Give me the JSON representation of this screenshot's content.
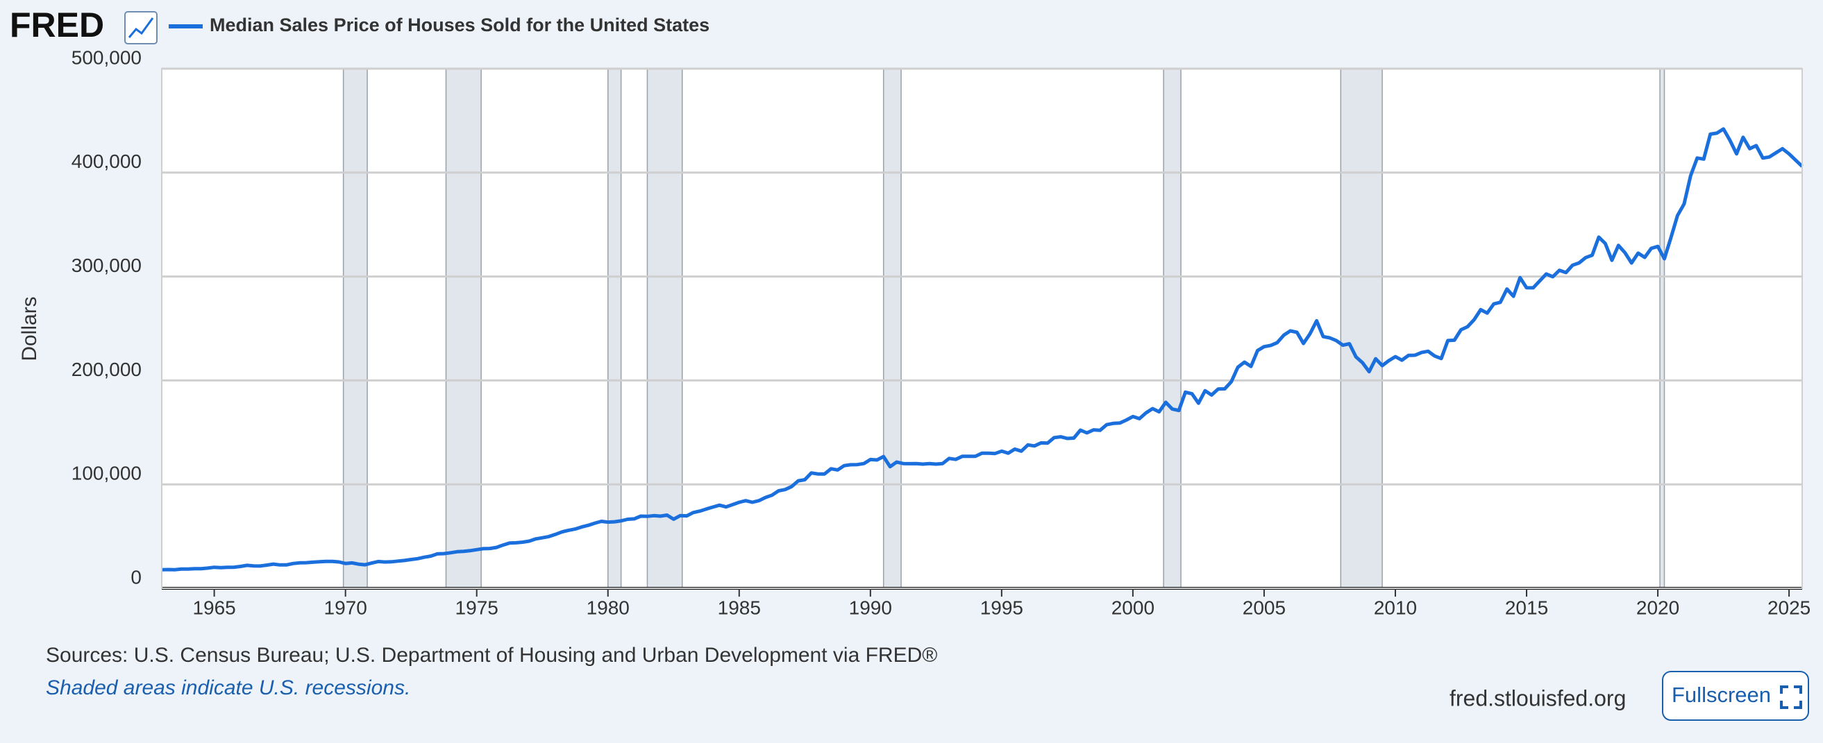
{
  "logo": "FRED",
  "footer": {
    "source": "Sources: U.S. Census Bureau; U.S. Department of Housing and Urban Development via FRED®",
    "note": "Shaded areas indicate U.S. recessions.",
    "site": "fred.stlouisfed.org",
    "button": "Fullscreen"
  },
  "chart_data": {
    "type": "line",
    "ylabel": "Dollars",
    "grid": true,
    "xlim": [
      1963,
      2025.5
    ],
    "xticks": [
      1965,
      1970,
      1975,
      1980,
      1985,
      1990,
      1995,
      2000,
      2005,
      2010,
      2015,
      2020,
      2025
    ],
    "ylim": [
      0,
      500000
    ],
    "yticks": [
      0,
      {
        "value": 100000,
        "label": "100,000"
      },
      {
        "value": 200000,
        "label": "200,000"
      },
      {
        "value": 300000,
        "label": "300,000"
      },
      {
        "value": 400000,
        "label": "400,000"
      },
      {
        "value": 500000,
        "label": "500,000"
      }
    ],
    "recessions": [
      [
        1969.92,
        1970.83
      ],
      [
        1973.83,
        1975.17
      ],
      [
        1980.0,
        1980.5
      ],
      [
        1981.5,
        1982.83
      ],
      [
        1990.5,
        1991.17
      ],
      [
        2001.17,
        2001.83
      ],
      [
        2007.92,
        2009.5
      ],
      [
        2020.08,
        2020.25
      ]
    ],
    "x": [
      1963,
      1963.25,
      1963.5,
      1963.75,
      1964,
      1964.25,
      1964.5,
      1964.75,
      1965,
      1965.25,
      1965.5,
      1965.75,
      1966,
      1966.25,
      1966.5,
      1966.75,
      1967,
      1967.25,
      1967.5,
      1967.75,
      1968,
      1968.25,
      1968.5,
      1968.75,
      1969,
      1969.25,
      1969.5,
      1969.75,
      1970,
      1970.25,
      1970.5,
      1970.75,
      1971,
      1971.25,
      1971.5,
      1971.75,
      1972,
      1972.25,
      1972.5,
      1972.75,
      1973,
      1973.25,
      1973.5,
      1973.75,
      1974,
      1974.25,
      1974.5,
      1974.75,
      1975,
      1975.25,
      1975.5,
      1975.75,
      1976,
      1976.25,
      1976.5,
      1976.75,
      1977,
      1977.25,
      1977.5,
      1977.75,
      1978,
      1978.25,
      1978.5,
      1978.75,
      1979,
      1979.25,
      1979.5,
      1979.75,
      1980,
      1980.25,
      1980.5,
      1980.75,
      1981,
      1981.25,
      1981.5,
      1981.75,
      1982,
      1982.25,
      1982.5,
      1982.75,
      1983,
      1983.25,
      1983.5,
      1983.75,
      1984,
      1984.25,
      1984.5,
      1984.75,
      1985,
      1985.25,
      1985.5,
      1985.75,
      1986,
      1986.25,
      1986.5,
      1986.75,
      1987,
      1987.25,
      1987.5,
      1987.75,
      1988,
      1988.25,
      1988.5,
      1988.75,
      1989,
      1989.25,
      1989.5,
      1989.75,
      1990,
      1990.25,
      1990.5,
      1990.75,
      1991,
      1991.25,
      1991.5,
      1991.75,
      1992,
      1992.25,
      1992.5,
      1992.75,
      1993,
      1993.25,
      1993.5,
      1993.75,
      1994,
      1994.25,
      1994.5,
      1994.75,
      1995,
      1995.25,
      1995.5,
      1995.75,
      1996,
      1996.25,
      1996.5,
      1996.75,
      1997,
      1997.25,
      1997.5,
      1997.75,
      1998,
      1998.25,
      1998.5,
      1998.75,
      1999,
      1999.25,
      1999.5,
      1999.75,
      2000,
      2000.25,
      2000.5,
      2000.75,
      2001,
      2001.25,
      2001.5,
      2001.75,
      2002,
      2002.25,
      2002.5,
      2002.75,
      2003,
      2003.25,
      2003.5,
      2003.75,
      2004,
      2004.25,
      2004.5,
      2004.75,
      2005,
      2005.25,
      2005.5,
      2005.75,
      2006,
      2006.25,
      2006.5,
      2006.75,
      2007,
      2007.25,
      2007.5,
      2007.75,
      2008,
      2008.25,
      2008.5,
      2008.75,
      2009,
      2009.25,
      2009.5,
      2009.75,
      2010,
      2010.25,
      2010.5,
      2010.75,
      2011,
      2011.25,
      2011.5,
      2011.75,
      2012,
      2012.25,
      2012.5,
      2012.75,
      2013,
      2013.25,
      2013.5,
      2013.75,
      2014,
      2014.25,
      2014.5,
      2014.75,
      2015,
      2015.25,
      2015.5,
      2015.75,
      2016,
      2016.25,
      2016.5,
      2016.75,
      2017,
      2017.25,
      2017.5,
      2017.75,
      2018,
      2018.25,
      2018.5,
      2018.75,
      2019,
      2019.25,
      2019.5,
      2019.75,
      2020,
      2020.25,
      2020.5,
      2020.75,
      2021,
      2021.25,
      2021.5,
      2021.75,
      2022,
      2022.25,
      2022.5,
      2022.75,
      2023,
      2023.25,
      2023.5,
      2023.75,
      2024,
      2024.25,
      2024.5,
      2024.75,
      2025,
      2025.25,
      2025.5
    ],
    "series": [
      {
        "name": "Median Sales Price of Houses Sold for the United States",
        "color": "#1a6fdc",
        "values": [
          17800,
          18000,
          17900,
          18500,
          18500,
          18900,
          18900,
          19400,
          20200,
          19800,
          20200,
          20300,
          21000,
          22100,
          21500,
          21400,
          22300,
          23300,
          22500,
          22500,
          23800,
          24500,
          24600,
          25100,
          25500,
          25900,
          25900,
          25400,
          23900,
          24400,
          23200,
          22600,
          24300,
          25800,
          25300,
          25500,
          26200,
          26800,
          27700,
          28500,
          29900,
          31000,
          33100,
          33400,
          34200,
          35200,
          35600,
          36200,
          37200,
          38100,
          38300,
          39300,
          41600,
          43600,
          43800,
          44400,
          45400,
          47500,
          48600,
          49800,
          51900,
          54300,
          55800,
          57000,
          59000,
          60600,
          62700,
          64400,
          63700,
          64000,
          64900,
          66400,
          66800,
          69400,
          69200,
          69900,
          69400,
          70400,
          66500,
          69900,
          69700,
          72900,
          74300,
          76300,
          78200,
          80000,
          78300,
          80500,
          82800,
          84300,
          82800,
          84300,
          87400,
          89600,
          93800,
          95000,
          97900,
          103400,
          104500,
          111000,
          110000,
          110000,
          115000,
          113900,
          118000,
          118900,
          119000,
          120000,
          123900,
          123500,
          126800,
          117000,
          121500,
          120000,
          119900,
          120000,
          119500,
          120000,
          119500,
          120000,
          125000,
          124000,
          127000,
          127000,
          127000,
          130000,
          130000,
          129700,
          132000,
          130000,
          133900,
          132000,
          138000,
          137000,
          139900,
          139700,
          145000,
          145800,
          144200,
          144500,
          152200,
          149500,
          152500,
          152000,
          157400,
          158700,
          159000,
          161900,
          165300,
          163200,
          168800,
          172900,
          169800,
          179000,
          172500,
          171100,
          188700,
          187200,
          178100,
          190100,
          186000,
          191800,
          191900,
          198800,
          212700,
          217600,
          213500,
          228800,
          232500,
          233700,
          236400,
          243600,
          247700,
          246300,
          235600,
          245000,
          257400,
          242200,
          241000,
          238400,
          233900,
          235300,
          222600,
          217000,
          208400,
          220900,
          214300,
          219000,
          222900,
          219500,
          224100,
          224300,
          226900,
          228100,
          223500,
          221100,
          238400,
          238700,
          248700,
          251700,
          258400,
          268100,
          264800,
          273600,
          275200,
          288000,
          281000,
          298900,
          289200,
          289100,
          295800,
          302500,
          299800,
          306000,
          303800,
          310900,
          313100,
          318200,
          320500,
          337900,
          331800,
          315600,
          330000,
          322800,
          313000,
          322500,
          318400,
          327100,
          329000,
          317100,
          337500,
          358700,
          369800,
          397000,
          414000,
          413000,
          437000,
          438000,
          442000,
          431000,
          418000,
          434000,
          423000,
          426000,
          414000,
          415000,
          419000,
          423000,
          418000,
          412000,
          406000
        ]
      }
    ]
  }
}
